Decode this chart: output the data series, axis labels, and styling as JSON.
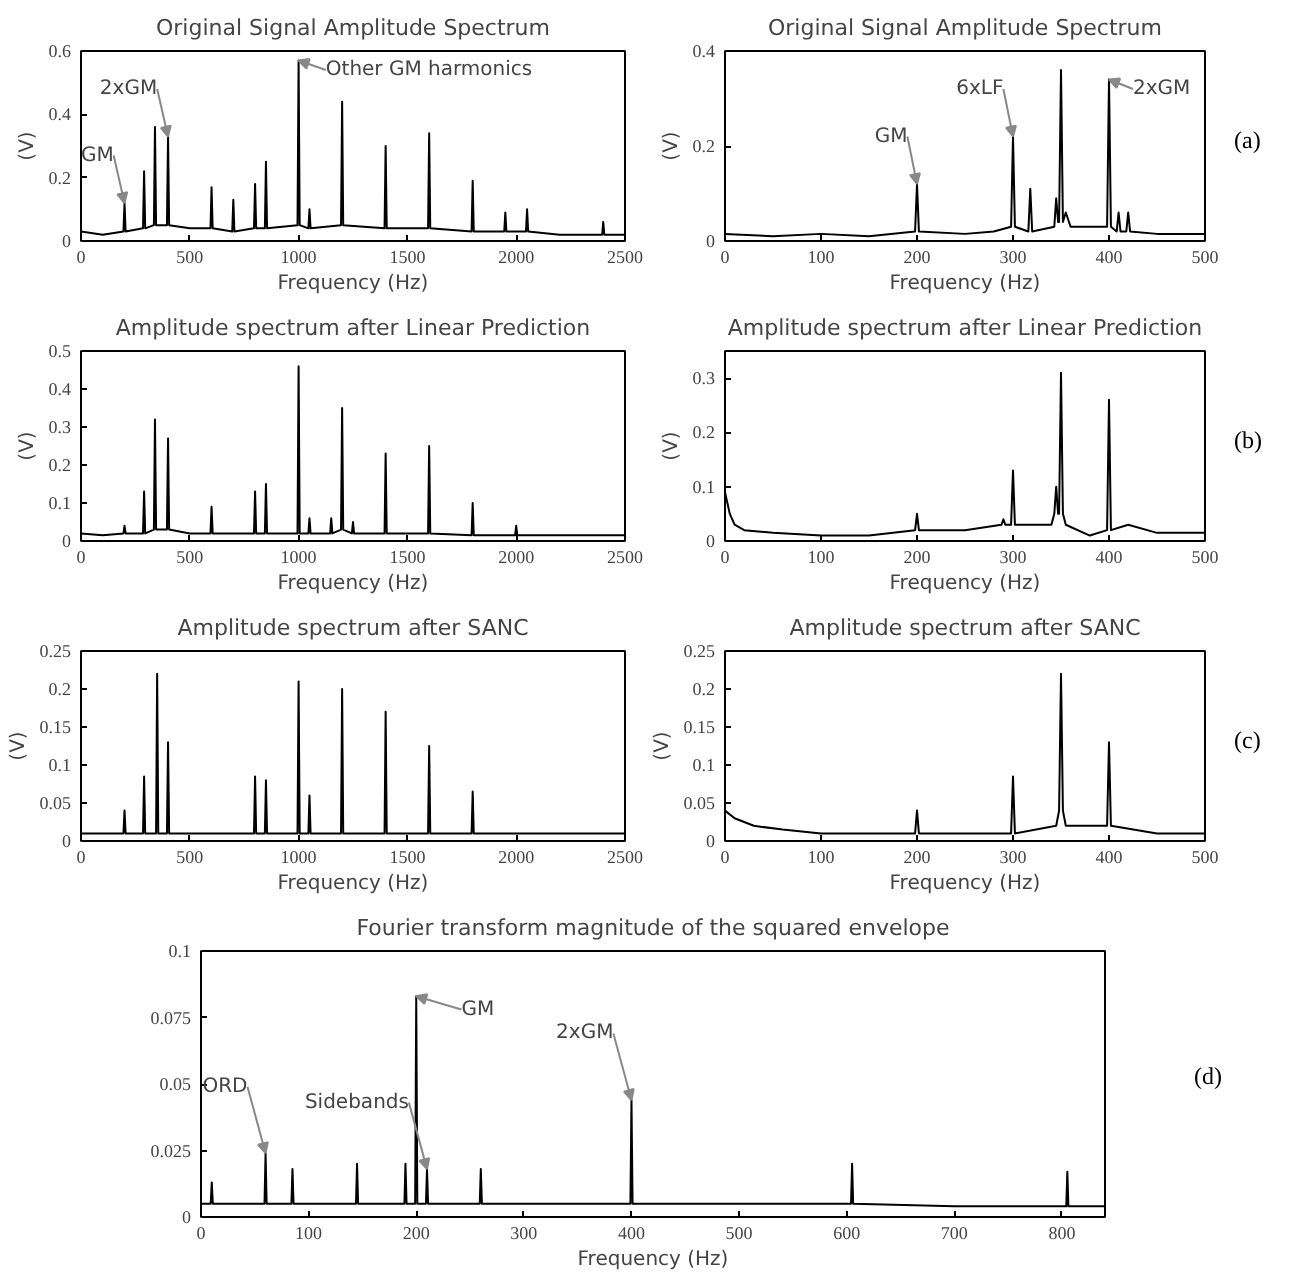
{
  "chart_data": [
    {
      "type": "line",
      "title": "Original Signal Amplitude Spectrum",
      "xlabel": "Frequency (Hz)",
      "ylabel": "(V)",
      "xlim": [
        0,
        2500
      ],
      "xticks": [
        0,
        500,
        1000,
        1500,
        2000,
        2500
      ],
      "ylim": [
        0,
        0.6
      ],
      "yticks": [
        0,
        0.2,
        0.4,
        0.6
      ],
      "series": [
        {
          "color": "#000000",
          "x": [
            0,
            100,
            195,
            200,
            205,
            285,
            290,
            295,
            335,
            340,
            345,
            395,
            400,
            405,
            500,
            595,
            600,
            605,
            695,
            700,
            705,
            795,
            800,
            805,
            845,
            850,
            855,
            995,
            1000,
            1005,
            1045,
            1050,
            1055,
            1195,
            1200,
            1205,
            1395,
            1400,
            1405,
            1595,
            1600,
            1605,
            1795,
            1800,
            1805,
            1945,
            1950,
            1955,
            2045,
            2050,
            2055,
            2200,
            2395,
            2400,
            2405,
            2500
          ],
          "values": [
            0.03,
            0.02,
            0.03,
            0.12,
            0.03,
            0.04,
            0.22,
            0.04,
            0.05,
            0.36,
            0.05,
            0.05,
            0.33,
            0.05,
            0.04,
            0.04,
            0.17,
            0.04,
            0.03,
            0.13,
            0.03,
            0.04,
            0.18,
            0.04,
            0.04,
            0.25,
            0.04,
            0.05,
            0.57,
            0.05,
            0.04,
            0.1,
            0.04,
            0.05,
            0.44,
            0.05,
            0.04,
            0.3,
            0.04,
            0.04,
            0.34,
            0.04,
            0.03,
            0.19,
            0.03,
            0.03,
            0.09,
            0.03,
            0.03,
            0.1,
            0.03,
            0.02,
            0.02,
            0.06,
            0.02,
            0.02
          ]
        }
      ],
      "annotations": [
        {
          "text": "GM",
          "x": 200,
          "y": 0.12
        },
        {
          "text": "2xGM",
          "x": 400,
          "y": 0.33
        },
        {
          "text": "Other GM harmonics",
          "x": 1000,
          "y": 0.57
        }
      ]
    },
    {
      "type": "line",
      "title": "Original Signal Amplitude Spectrum",
      "xlabel": "Frequency (Hz)",
      "ylabel": "(V)",
      "xlim": [
        0,
        500
      ],
      "xticks": [
        0,
        100,
        200,
        300,
        400,
        500
      ],
      "ylim": [
        0,
        0.4
      ],
      "yticks": [
        0,
        0.2,
        0.4
      ],
      "series": [
        {
          "color": "#000000",
          "x": [
            0,
            50,
            100,
            150,
            198,
            200,
            202,
            250,
            280,
            298,
            300,
            302,
            316,
            318,
            320,
            343,
            345,
            347,
            348,
            350,
            352,
            355,
            360,
            380,
            398,
            400,
            402,
            408,
            410,
            412,
            418,
            420,
            422,
            450,
            500
          ],
          "values": [
            0.015,
            0.01,
            0.015,
            0.01,
            0.02,
            0.12,
            0.02,
            0.015,
            0.02,
            0.03,
            0.22,
            0.03,
            0.02,
            0.11,
            0.02,
            0.03,
            0.09,
            0.04,
            0.04,
            0.36,
            0.04,
            0.06,
            0.03,
            0.03,
            0.03,
            0.34,
            0.03,
            0.02,
            0.06,
            0.02,
            0.02,
            0.06,
            0.02,
            0.015,
            0.015
          ]
        }
      ],
      "annotations": [
        {
          "text": "GM",
          "x": 200,
          "y": 0.12
        },
        {
          "text": "6xLF",
          "x": 300,
          "y": 0.22
        },
        {
          "text": "2xGM",
          "x": 400,
          "y": 0.34
        },
        "(a)"
      ]
    },
    {
      "type": "line",
      "title": "Amplitude spectrum after Linear Prediction",
      "xlabel": "Frequency (Hz)",
      "ylabel": "(V)",
      "xlim": [
        0,
        2500
      ],
      "xticks": [
        0,
        500,
        1000,
        1500,
        2000,
        2500
      ],
      "ylim": [
        0,
        0.5
      ],
      "yticks": [
        0,
        0.1,
        0.2,
        0.3,
        0.4,
        0.5
      ],
      "series": [
        {
          "color": "#000000",
          "x": [
            0,
            100,
            195,
            200,
            205,
            285,
            290,
            295,
            335,
            340,
            345,
            395,
            400,
            405,
            500,
            595,
            600,
            605,
            795,
            800,
            805,
            845,
            850,
            855,
            995,
            1000,
            1005,
            1045,
            1050,
            1055,
            1145,
            1150,
            1155,
            1195,
            1200,
            1205,
            1245,
            1250,
            1255,
            1395,
            1400,
            1405,
            1595,
            1600,
            1605,
            1795,
            1800,
            1805,
            1995,
            2000,
            2005,
            2200,
            2500
          ],
          "values": [
            0.02,
            0.015,
            0.02,
            0.04,
            0.02,
            0.02,
            0.13,
            0.02,
            0.03,
            0.32,
            0.03,
            0.03,
            0.27,
            0.03,
            0.02,
            0.02,
            0.09,
            0.02,
            0.02,
            0.13,
            0.02,
            0.02,
            0.15,
            0.02,
            0.02,
            0.46,
            0.02,
            0.02,
            0.06,
            0.02,
            0.02,
            0.06,
            0.02,
            0.03,
            0.35,
            0.03,
            0.02,
            0.05,
            0.02,
            0.02,
            0.23,
            0.02,
            0.02,
            0.25,
            0.02,
            0.015,
            0.1,
            0.015,
            0.015,
            0.04,
            0.015,
            0.015,
            0.015
          ]
        }
      ]
    },
    {
      "type": "line",
      "title": "Amplitude spectrum after Linear Prediction",
      "xlabel": "Frequency (Hz)",
      "ylabel": "(V)",
      "xlim": [
        0,
        500
      ],
      "xticks": [
        0,
        100,
        200,
        300,
        400,
        500
      ],
      "ylim": [
        0,
        0.35
      ],
      "yticks": [
        0,
        0.1,
        0.2,
        0.3
      ],
      "series": [
        {
          "color": "#000000",
          "x": [
            0,
            5,
            10,
            20,
            50,
            100,
            150,
            198,
            200,
            202,
            250,
            288,
            290,
            292,
            298,
            300,
            302,
            340,
            343,
            345,
            347,
            348,
            350,
            352,
            355,
            380,
            398,
            400,
            402,
            420,
            450,
            500
          ],
          "values": [
            0.09,
            0.05,
            0.03,
            0.02,
            0.015,
            0.01,
            0.01,
            0.02,
            0.05,
            0.02,
            0.02,
            0.03,
            0.04,
            0.03,
            0.03,
            0.13,
            0.03,
            0.03,
            0.05,
            0.1,
            0.05,
            0.05,
            0.31,
            0.05,
            0.03,
            0.01,
            0.02,
            0.26,
            0.02,
            0.03,
            0.015,
            0.015
          ]
        }
      ],
      "annotations": [
        "(b)"
      ]
    },
    {
      "type": "line",
      "title": "Amplitude spectrum after SANC",
      "xlabel": "Frequency (Hz)",
      "ylabel": "(V)",
      "xlim": [
        0,
        2500
      ],
      "xticks": [
        0,
        500,
        1000,
        1500,
        2000,
        2500
      ],
      "ylim": [
        0,
        0.25
      ],
      "yticks": [
        0,
        0.05,
        0.1,
        0.15,
        0.2,
        0.25
      ],
      "series": [
        {
          "color": "#000000",
          "x": [
            0,
            100,
            195,
            200,
            205,
            285,
            290,
            295,
            345,
            350,
            355,
            395,
            400,
            405,
            600,
            795,
            800,
            805,
            845,
            850,
            855,
            995,
            1000,
            1005,
            1045,
            1050,
            1055,
            1195,
            1200,
            1205,
            1395,
            1400,
            1405,
            1595,
            1600,
            1605,
            1795,
            1800,
            1805,
            2200,
            2500
          ],
          "values": [
            0.01,
            0.01,
            0.01,
            0.04,
            0.01,
            0.01,
            0.085,
            0.01,
            0.01,
            0.22,
            0.01,
            0.01,
            0.13,
            0.01,
            0.01,
            0.01,
            0.085,
            0.01,
            0.01,
            0.08,
            0.01,
            0.01,
            0.21,
            0.01,
            0.01,
            0.06,
            0.01,
            0.01,
            0.2,
            0.01,
            0.01,
            0.17,
            0.01,
            0.01,
            0.125,
            0.01,
            0.01,
            0.065,
            0.01,
            0.01,
            0.01
          ]
        }
      ]
    },
    {
      "type": "line",
      "title": "Amplitude spectrum after SANC",
      "xlabel": "Frequency (Hz)",
      "ylabel": "(V)",
      "xlim": [
        0,
        500
      ],
      "xticks": [
        0,
        100,
        200,
        300,
        400,
        500
      ],
      "ylim": [
        0,
        0.25
      ],
      "yticks": [
        0,
        0.05,
        0.1,
        0.15,
        0.2,
        0.25
      ],
      "series": [
        {
          "color": "#000000",
          "x": [
            0,
            10,
            30,
            60,
            100,
            150,
            198,
            200,
            202,
            250,
            298,
            300,
            302,
            345,
            348,
            350,
            352,
            355,
            398,
            400,
            402,
            450,
            500
          ],
          "values": [
            0.04,
            0.03,
            0.02,
            0.015,
            0.01,
            0.01,
            0.01,
            0.04,
            0.01,
            0.01,
            0.01,
            0.085,
            0.01,
            0.02,
            0.04,
            0.22,
            0.04,
            0.02,
            0.02,
            0.13,
            0.02,
            0.01,
            0.01
          ]
        }
      ],
      "annotations": [
        "(c)"
      ]
    },
    {
      "type": "line",
      "title": "Fourier transform magnitude of the squared envelope",
      "xlabel": "Frequency (Hz)",
      "xlim": [
        0,
        840
      ],
      "xticks": [
        0,
        100,
        200,
        300,
        400,
        500,
        600,
        700,
        800
      ],
      "ylim": [
        0,
        0.1
      ],
      "yticks": [
        0,
        0.025,
        0.05,
        0.075,
        0.1
      ],
      "series": [
        {
          "color": "#000000",
          "x": [
            0,
            9,
            10,
            11,
            30,
            59,
            60,
            61,
            84,
            85,
            86,
            110,
            144,
            145,
            146,
            170,
            189,
            190,
            191,
            199,
            200,
            201,
            209,
            210,
            211,
            230,
            259,
            260,
            261,
            300,
            350,
            399,
            400,
            401,
            450,
            500,
            550,
            604,
            605,
            606,
            700,
            804,
            805,
            806,
            840
          ],
          "values": [
            0.005,
            0.005,
            0.013,
            0.005,
            0.005,
            0.005,
            0.024,
            0.005,
            0.005,
            0.018,
            0.005,
            0.005,
            0.005,
            0.02,
            0.005,
            0.005,
            0.005,
            0.02,
            0.005,
            0.005,
            0.083,
            0.005,
            0.005,
            0.018,
            0.005,
            0.005,
            0.005,
            0.018,
            0.005,
            0.005,
            0.005,
            0.005,
            0.044,
            0.005,
            0.005,
            0.005,
            0.005,
            0.005,
            0.02,
            0.005,
            0.004,
            0.004,
            0.017,
            0.004,
            0.004
          ]
        }
      ],
      "annotations": [
        {
          "text": "ORD",
          "x": 60,
          "y": 0.024
        },
        {
          "text": "GM",
          "x": 200,
          "y": 0.083
        },
        {
          "text": "Sidebands",
          "x": 210,
          "y": 0.018
        },
        {
          "text": "2xGM",
          "x": 400,
          "y": 0.044
        },
        "(d)"
      ]
    }
  ]
}
